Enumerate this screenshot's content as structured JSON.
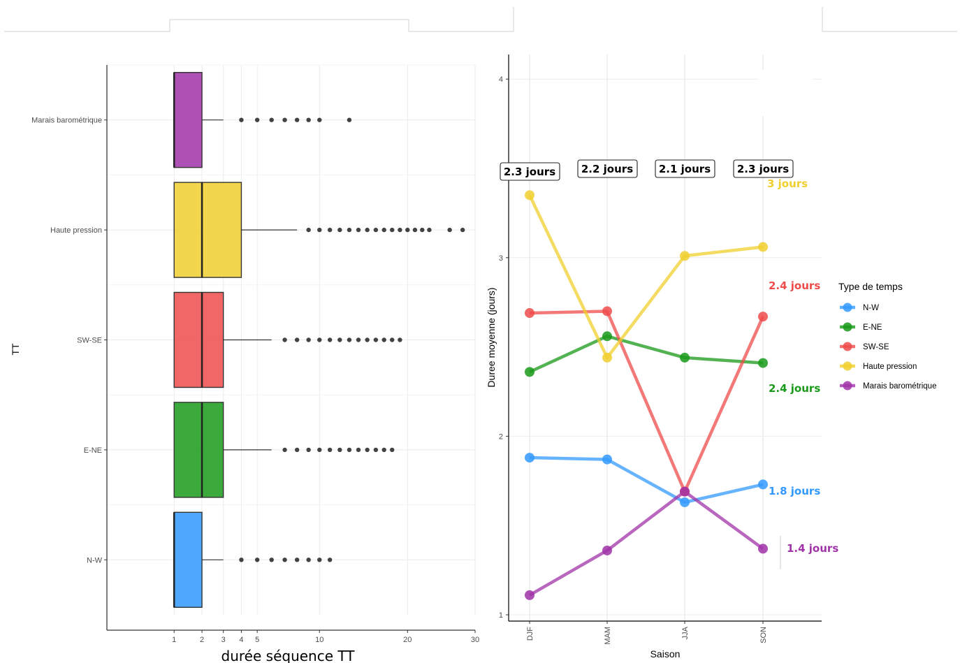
{
  "chart_data": [
    {
      "type": "boxplot",
      "ylabel": "TT",
      "xlabel": "durée séquence TT",
      "x_ticks": [
        1,
        2,
        3,
        4,
        5,
        10,
        20,
        30
      ],
      "x_scale": "sqrt",
      "categories": [
        "N-W",
        "E-NE",
        "SW-SE",
        "Haute pression",
        "Marais barométrique"
      ],
      "colors": [
        "#3399ff",
        "#1a9a1a",
        "#ef4b4b",
        "#f0cf2e",
        "#a033a8"
      ],
      "boxes": [
        {
          "name": "N-W",
          "min": 1,
          "q1": 1,
          "median": 1,
          "q3": 2,
          "max": 3,
          "outliers": [
            4,
            5,
            6,
            7,
            8,
            9,
            10,
            11
          ]
        },
        {
          "name": "E-NE",
          "min": 1,
          "q1": 1,
          "median": 2,
          "q3": 3,
          "max": 6,
          "outliers": [
            7,
            8,
            9,
            10,
            11,
            12,
            13,
            14,
            15,
            16,
            17,
            18
          ]
        },
        {
          "name": "SW-SE",
          "min": 1,
          "q1": 1,
          "median": 2,
          "q3": 3,
          "max": 6,
          "outliers": [
            7,
            8,
            9,
            10,
            11,
            12,
            13,
            14,
            15,
            16,
            17,
            18,
            19
          ]
        },
        {
          "name": "Haute pression",
          "min": 1,
          "q1": 1,
          "median": 2,
          "q3": 4,
          "max": 8,
          "outliers": [
            9,
            10,
            11,
            12,
            13,
            14,
            15,
            16,
            17,
            18,
            19,
            20,
            21,
            22,
            23,
            26,
            28
          ]
        },
        {
          "name": "Marais barométrique",
          "min": 1,
          "q1": 1,
          "median": 1,
          "q3": 2,
          "max": 3,
          "outliers": [
            4,
            5,
            6,
            7,
            8,
            9,
            10,
            13
          ]
        }
      ]
    },
    {
      "type": "line",
      "xlabel": "Saison",
      "ylabel": "Duree moyenne (jours)",
      "categories": [
        "DJF",
        "MAM",
        "JJA",
        "SON"
      ],
      "ylim": [
        1,
        4
      ],
      "y_ticks": [
        1,
        2,
        3,
        4
      ],
      "legend_title": "Type de temps",
      "legend_position": "right",
      "season_labels": [
        "2.3 jours",
        "2.2 jours",
        "2.1 jours",
        "2.3 jours"
      ],
      "series": [
        {
          "name": "N-W",
          "color": "#3399ff",
          "values": [
            1.88,
            1.87,
            1.63,
            1.73
          ],
          "end_label": "1.8 jours"
        },
        {
          "name": "E-NE",
          "color": "#1a9a1a",
          "values": [
            2.36,
            2.56,
            2.44,
            2.41
          ],
          "end_label": "2.4 jours"
        },
        {
          "name": "SW-SE",
          "color": "#ef4b4b",
          "values": [
            2.69,
            2.7,
            1.69,
            2.67
          ],
          "end_label": "2.4 jours"
        },
        {
          "name": "Haute pression",
          "color": "#f0cf2e",
          "values": [
            3.35,
            2.44,
            3.01,
            3.06
          ],
          "end_label": "3 jours"
        },
        {
          "name": "Marais barométrique",
          "color": "#a033a8",
          "values": [
            1.11,
            1.36,
            1.69,
            1.37
          ],
          "end_label": "1.4 jours"
        }
      ]
    }
  ]
}
